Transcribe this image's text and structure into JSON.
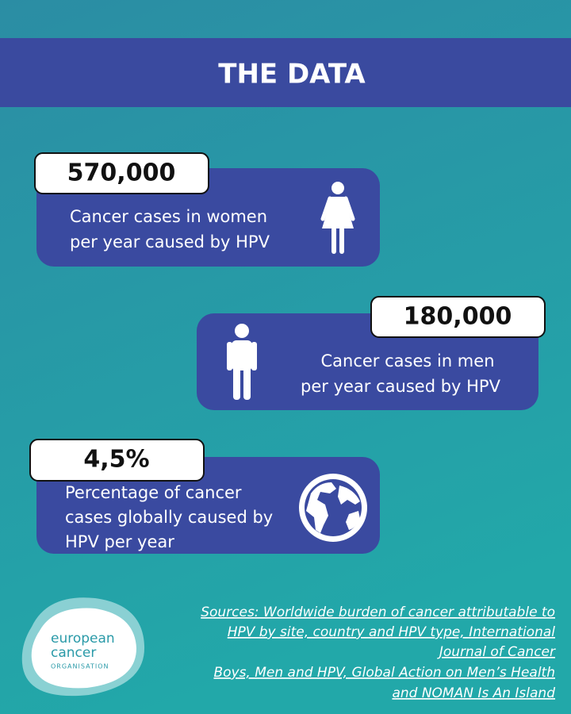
{
  "header": {
    "title": "THE DATA"
  },
  "stats": [
    {
      "value": "570,000",
      "lines": [
        "Cancer cases in women",
        "per year caused by HPV"
      ]
    },
    {
      "value": "180,000",
      "lines": [
        "Cancer cases in men",
        "per year caused by HPV"
      ]
    },
    {
      "value": "4,5%",
      "lines": [
        "Percentage of cancer",
        "cases globally caused by",
        "HPV per year"
      ]
    }
  ],
  "logo": {
    "lines": [
      "european",
      "cancer"
    ],
    "sub": "ORGANISATION"
  },
  "sources": {
    "lines": [
      "Sources: Worldwide burden of cancer attributable to",
      "HPV by site, country and HPV type, International",
      "Journal of Cancer",
      "Boys, Men and HPV, Global Action on Men’s Health",
      "and NOMAN Is An Island"
    ]
  }
}
